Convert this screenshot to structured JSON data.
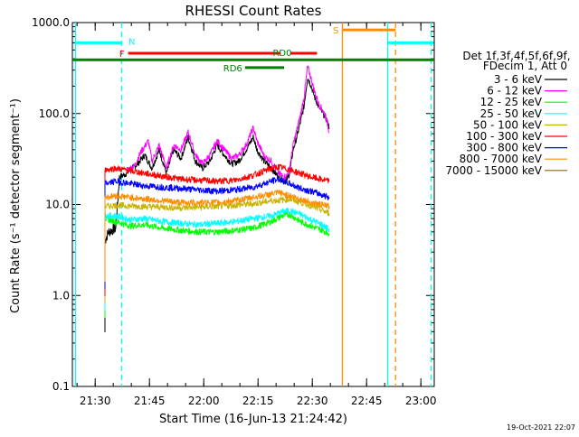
{
  "chart_data": {
    "type": "line",
    "title": "RHESSI Count Rates",
    "xlabel": "Start Time (16-Jun-13 21:24:42)",
    "ylabel": "Count Rate (s⁻¹ detector segment⁻¹)",
    "yscale": "log",
    "ylim": [
      0.1,
      1000
    ],
    "xlim_minutes": [
      0,
      100
    ],
    "x_ticks": [
      {
        "minute": 6.3,
        "label": "21:30"
      },
      {
        "minute": 21.3,
        "label": "21:45"
      },
      {
        "minute": 36.3,
        "label": "22:00"
      },
      {
        "minute": 51.3,
        "label": "22:15"
      },
      {
        "minute": 66.3,
        "label": "22:30"
      },
      {
        "minute": 81.3,
        "label": "22:45"
      },
      {
        "minute": 96.3,
        "label": "23:00"
      }
    ],
    "y_ticks": [
      {
        "value": 0.1,
        "label": "0.1"
      },
      {
        "value": 1,
        "label": "1.0"
      },
      {
        "value": 10,
        "label": "10.0"
      },
      {
        "value": 100,
        "label": "100.0"
      },
      {
        "value": 1000,
        "label": "1000.0"
      }
    ],
    "legend_header": [
      "Det 1f,3f,4f,5f,6f,9f,",
      "FDecim 1, Att 0"
    ],
    "legend_position": "right",
    "series": [
      {
        "name": "3 - 6 keV",
        "color": "#000000",
        "points": [
          [
            9,
            4
          ],
          [
            10,
            5
          ],
          [
            12,
            5.5
          ],
          [
            13,
            20
          ],
          [
            15,
            22
          ],
          [
            18,
            28
          ],
          [
            20,
            35
          ],
          [
            22,
            25
          ],
          [
            24,
            40
          ],
          [
            26,
            22
          ],
          [
            28,
            40
          ],
          [
            30,
            32
          ],
          [
            32,
            55
          ],
          [
            34,
            30
          ],
          [
            36,
            25
          ],
          [
            38,
            30
          ],
          [
            40,
            45
          ],
          [
            42,
            35
          ],
          [
            44,
            28
          ],
          [
            46,
            30
          ],
          [
            48,
            40
          ],
          [
            50,
            55
          ],
          [
            51,
            40
          ],
          [
            53,
            30
          ],
          [
            55,
            25
          ],
          [
            57,
            20
          ],
          [
            59,
            18
          ],
          [
            60,
            22
          ],
          [
            61,
            40
          ],
          [
            62,
            55
          ],
          [
            63,
            80
          ],
          [
            64,
            120
          ],
          [
            65,
            250
          ],
          [
            66,
            200
          ],
          [
            67,
            150
          ],
          [
            68,
            120
          ],
          [
            70,
            90
          ],
          [
            71,
            70
          ]
        ]
      },
      {
        "name": "6 - 12 keV",
        "color": "#ff00ff",
        "points": [
          [
            15,
            24
          ],
          [
            17,
            26
          ],
          [
            19,
            38
          ],
          [
            21,
            50
          ],
          [
            22,
            30
          ],
          [
            24,
            45
          ],
          [
            26,
            25
          ],
          [
            28,
            45
          ],
          [
            30,
            40
          ],
          [
            32,
            62
          ],
          [
            34,
            35
          ],
          [
            36,
            28
          ],
          [
            38,
            35
          ],
          [
            40,
            50
          ],
          [
            42,
            40
          ],
          [
            44,
            32
          ],
          [
            46,
            35
          ],
          [
            48,
            45
          ],
          [
            50,
            70
          ],
          [
            51,
            50
          ],
          [
            53,
            34
          ],
          [
            55,
            30
          ],
          [
            57,
            22
          ],
          [
            59,
            20
          ],
          [
            60,
            25
          ],
          [
            61,
            45
          ],
          [
            62,
            65
          ],
          [
            63,
            95
          ],
          [
            64,
            150
          ],
          [
            65,
            330
          ],
          [
            66,
            240
          ],
          [
            67,
            170
          ],
          [
            68,
            130
          ],
          [
            70,
            95
          ],
          [
            71,
            62
          ]
        ]
      },
      {
        "name": "12 - 25 keV",
        "color": "#00ff00",
        "points": [
          [
            9,
            7
          ],
          [
            12,
            6.5
          ],
          [
            16,
            5.8
          ],
          [
            20,
            6
          ],
          [
            25,
            5.5
          ],
          [
            30,
            5.2
          ],
          [
            35,
            5
          ],
          [
            40,
            5
          ],
          [
            45,
            5.2
          ],
          [
            50,
            5.5
          ],
          [
            55,
            6.5
          ],
          [
            58,
            7.5
          ],
          [
            60,
            7.8
          ],
          [
            63,
            6.5
          ],
          [
            66,
            5.8
          ],
          [
            69,
            5.2
          ],
          [
            71,
            4.8
          ]
        ]
      },
      {
        "name": "25 - 50 keV",
        "color": "#00ffff",
        "points": [
          [
            9,
            7.5
          ],
          [
            12,
            7.5
          ],
          [
            16,
            6.8
          ],
          [
            20,
            7
          ],
          [
            25,
            6.5
          ],
          [
            30,
            6.2
          ],
          [
            35,
            6
          ],
          [
            40,
            6.2
          ],
          [
            45,
            6.5
          ],
          [
            50,
            7
          ],
          [
            55,
            7.5
          ],
          [
            58,
            8.3
          ],
          [
            60,
            8.6
          ],
          [
            63,
            7.8
          ],
          [
            66,
            6.8
          ],
          [
            69,
            6
          ],
          [
            71,
            5.3
          ]
        ]
      },
      {
        "name": "50 - 100 keV",
        "color": "#c8b400",
        "points": [
          [
            9,
            9.5
          ],
          [
            12,
            9.8
          ],
          [
            20,
            9.5
          ],
          [
            30,
            9.2
          ],
          [
            40,
            9.5
          ],
          [
            50,
            10.2
          ],
          [
            55,
            11
          ],
          [
            58,
            11.2
          ],
          [
            60,
            11.5
          ],
          [
            65,
            10
          ],
          [
            71,
            8
          ]
        ]
      },
      {
        "name": "100 - 300 keV",
        "color": "#ff0000",
        "points": [
          [
            9,
            24
          ],
          [
            12,
            25
          ],
          [
            20,
            22
          ],
          [
            30,
            19
          ],
          [
            40,
            18
          ],
          [
            45,
            18.5
          ],
          [
            50,
            21
          ],
          [
            55,
            25
          ],
          [
            57,
            26
          ],
          [
            60,
            24
          ],
          [
            63,
            22
          ],
          [
            66,
            20
          ],
          [
            71,
            18
          ]
        ]
      },
      {
        "name": "300 - 800 keV",
        "color": "#0000ff",
        "points": [
          [
            9,
            17
          ],
          [
            12,
            18
          ],
          [
            20,
            16
          ],
          [
            30,
            15
          ],
          [
            40,
            14
          ],
          [
            45,
            14.5
          ],
          [
            50,
            15.5
          ],
          [
            55,
            18
          ],
          [
            57,
            19
          ],
          [
            60,
            17
          ],
          [
            63,
            15
          ],
          [
            66,
            14
          ],
          [
            71,
            12
          ]
        ]
      },
      {
        "name": "800 - 7000 keV",
        "color": "#ff8c00",
        "points": [
          [
            9,
            12
          ],
          [
            12,
            12.5
          ],
          [
            20,
            11.5
          ],
          [
            30,
            10.5
          ],
          [
            40,
            10.5
          ],
          [
            45,
            11
          ],
          [
            50,
            12
          ],
          [
            55,
            13
          ],
          [
            57,
            13.5
          ],
          [
            60,
            12.5
          ],
          [
            63,
            11.5
          ],
          [
            66,
            10.5
          ],
          [
            71,
            9.5
          ]
        ]
      },
      {
        "name": "7000 - 15000 keV",
        "color": "#8b6914",
        "points": []
      }
    ],
    "annotations": {
      "vertical_lines": [
        {
          "minute": 0.9,
          "color": "#00ffff",
          "style": "solid"
        },
        {
          "minute": 13.6,
          "color": "#00ffff",
          "style": "dashed"
        },
        {
          "minute": 74.6,
          "color": "#ff8c00",
          "style": "solid"
        },
        {
          "minute": 87.1,
          "color": "#00ffff",
          "style": "solid"
        },
        {
          "minute": 89.3,
          "color": "#ff8c00",
          "style": "dashed"
        },
        {
          "minute": 99.1,
          "color": "#00ffff",
          "style": "dashed"
        }
      ],
      "bars": [
        {
          "label": "",
          "color": "#00ffff",
          "start": 0.9,
          "end": 13.6,
          "value": 600
        },
        {
          "label": "N",
          "color": "#00ffff",
          "start": 15,
          "end": 15,
          "value": 600
        },
        {
          "label": "F",
          "color": "#ff0000",
          "start": 15.4,
          "end": 57.5,
          "value": 460
        },
        {
          "label": "",
          "color": "#ff0000",
          "start": 60.2,
          "end": 67.6,
          "value": 460
        },
        {
          "label": "S",
          "color": "#ff8c00",
          "start": 74.6,
          "end": 89.3,
          "value": 830
        },
        {
          "label": "",
          "color": "#00ffff",
          "start": 87.1,
          "end": 99.8,
          "value": 600
        },
        {
          "label": "RD0",
          "color": "#008000",
          "start": 0,
          "end": 100,
          "value": 390
        },
        {
          "label": "RD6",
          "color": "#008000",
          "start": 47.7,
          "end": 58.5,
          "value": 320
        }
      ]
    }
  },
  "footer_timestamp": "19-Oct-2021 22:07"
}
